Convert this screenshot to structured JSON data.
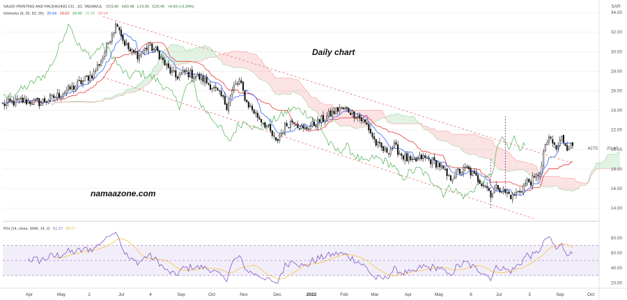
{
  "header": {
    "symbol_line": "SAUDI PRINTING AND PACKAGING CO., 1D, TADAWUL",
    "ohlc": [
      {
        "label": "O",
        "value": "19.90"
      },
      {
        "label": "H",
        "value": "20.48"
      },
      {
        "label": "L",
        "value": "19.90"
      },
      {
        "label": "C",
        "value": "20.40"
      }
    ],
    "change": "+0.66 (+3.34%)",
    "currency": "SAR"
  },
  "ichimoku_legend": {
    "label": "Ichimoku (9, 26, 52, 26)",
    "values": [
      {
        "value": "20.64",
        "color": "#2962ff"
      },
      {
        "value": "19.02",
        "color": "#d32f2f"
      },
      {
        "value": "20.40",
        "color": "#2e9e3e"
      },
      {
        "value": "15.93",
        "color": "#a5d6a7"
      },
      {
        "value": "18.14",
        "color": "#ef9a9a"
      }
    ]
  },
  "rsi_legend": {
    "label": "RSI (14, close, SMA, 14, 2)",
    "values": [
      {
        "value": "61.27",
        "color": "#7e57c2"
      },
      {
        "value": "66.17",
        "color": "#f9c74f"
      }
    ]
  },
  "annotations": {
    "chart_label": "Daily chart",
    "watermark": "namaazone.com",
    "volume_label": "4270",
    "last_price_tag": "20.40"
  },
  "chart_data": [
    {
      "type": "candlestick",
      "x_labels": [
        "Apr",
        "May",
        "2",
        "Jul",
        "4",
        "Sep",
        "Oct",
        "Nov",
        "Dec",
        "2022",
        "Feb",
        "Mar",
        "Apr",
        "May",
        "6",
        "Jul",
        "3",
        "Sep",
        "Oct"
      ],
      "y_ticks": [
        14.0,
        16.0,
        18.0,
        20.0,
        22.0,
        24.0,
        26.0,
        28.0,
        30.0,
        32.0,
        34.0
      ],
      "ylim": [
        12.8,
        35.0
      ],
      "close_path": [
        [
          0,
          24.6
        ],
        [
          10,
          25.0
        ],
        [
          20,
          24.8
        ],
        [
          30,
          25.5
        ],
        [
          40,
          26.5
        ],
        [
          50,
          27.8
        ],
        [
          55,
          29.5
        ],
        [
          60,
          32.0
        ],
        [
          63,
          33.0
        ],
        [
          66,
          31.2
        ],
        [
          70,
          30.0
        ],
        [
          75,
          29.6
        ],
        [
          80,
          30.6
        ],
        [
          85,
          30.0
        ],
        [
          90,
          28.4
        ],
        [
          95,
          27.4
        ],
        [
          100,
          27.9
        ],
        [
          105,
          27.6
        ],
        [
          110,
          27.2
        ],
        [
          115,
          26.4
        ],
        [
          120,
          25.4
        ],
        [
          123,
          24.5
        ],
        [
          127,
          26.4
        ],
        [
          130,
          27.0
        ],
        [
          134,
          24.8
        ],
        [
          140,
          23.4
        ],
        [
          145,
          22.4
        ],
        [
          148,
          21.4
        ],
        [
          150,
          20.7
        ],
        [
          155,
          22.4
        ],
        [
          160,
          23.0
        ],
        [
          165,
          22.0
        ],
        [
          170,
          22.5
        ],
        [
          175,
          23.0
        ],
        [
          180,
          23.6
        ],
        [
          185,
          24.2
        ],
        [
          190,
          24.0
        ],
        [
          195,
          23.4
        ],
        [
          200,
          22.5
        ],
        [
          205,
          20.6
        ],
        [
          210,
          19.8
        ],
        [
          215,
          20.3
        ],
        [
          220,
          19.3
        ],
        [
          225,
          18.6
        ],
        [
          230,
          19.2
        ],
        [
          235,
          18.9
        ],
        [
          240,
          18.4
        ],
        [
          245,
          17.0
        ],
        [
          250,
          17.7
        ],
        [
          255,
          18.0
        ],
        [
          260,
          17.1
        ],
        [
          265,
          16.4
        ],
        [
          268,
          15.5
        ],
        [
          272,
          16.2
        ],
        [
          276,
          15.6
        ],
        [
          280,
          15.2
        ],
        [
          284,
          15.8
        ],
        [
          288,
          16.7
        ],
        [
          292,
          16.9
        ],
        [
          296,
          18.2
        ],
        [
          298,
          20.6
        ],
        [
          301,
          21.0
        ],
        [
          304,
          20.0
        ],
        [
          307,
          21.2
        ],
        [
          310,
          20.3
        ],
        [
          313,
          20.4
        ]
      ]
    },
    {
      "type": "line",
      "name": "RSI",
      "y_ticks": [
        20.0,
        40.0,
        60.0,
        80.0
      ],
      "ylim": [
        15,
        90
      ],
      "bands": [
        30,
        50,
        70
      ]
    }
  ]
}
